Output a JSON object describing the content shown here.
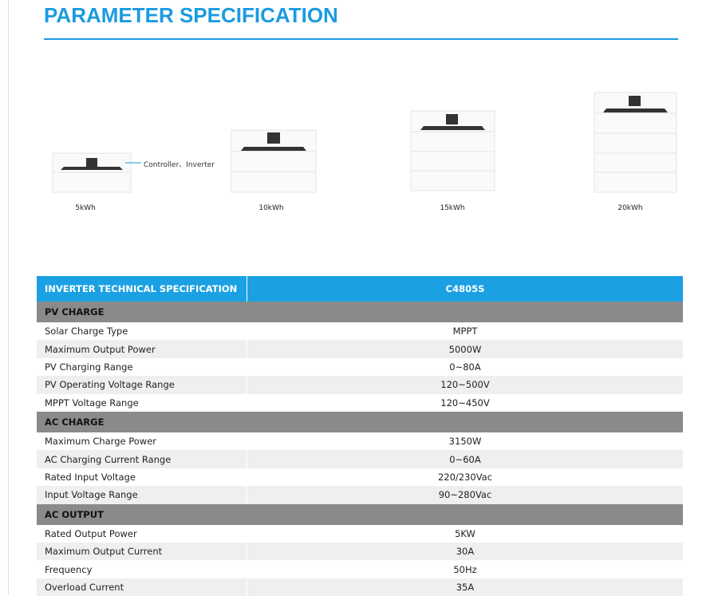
{
  "header": {
    "title": "PARAMETER SPECIFICATION"
  },
  "products": {
    "annotation": "Controller、Inverter",
    "items": [
      "5kWh",
      "10kWh",
      "15kWh",
      "20kWh"
    ]
  },
  "table": {
    "header": [
      "INVERTER TECHNICAL SPECIFICATION",
      "C4805S"
    ],
    "sections": [
      {
        "title": "PV CHARGE",
        "rows": [
          [
            "Solar Charge Type",
            "MPPT"
          ],
          [
            "Maximum Output Power",
            "5000W"
          ],
          [
            "PV Charging Range",
            "0~80A"
          ],
          [
            "PV Operating Voltage Range",
            "120~500V"
          ],
          [
            "MPPT Voltage Range",
            "120~450V"
          ]
        ]
      },
      {
        "title": "AC CHARGE",
        "rows": [
          [
            "Maximum Charge Power",
            "3150W"
          ],
          [
            "AC Charging Current Range",
            "0~60A"
          ],
          [
            "Rated Input Voltage",
            "220/230Vac"
          ],
          [
            "Input Voltage Range",
            "90~280Vac"
          ]
        ]
      },
      {
        "title": "AC OUTPUT",
        "rows": [
          [
            "Rated Output Power",
            "5KW"
          ],
          [
            "Maximum Output Current",
            "30A"
          ],
          [
            "Frequency",
            "50Hz"
          ],
          [
            "Overload Current",
            "35A"
          ]
        ]
      }
    ]
  }
}
